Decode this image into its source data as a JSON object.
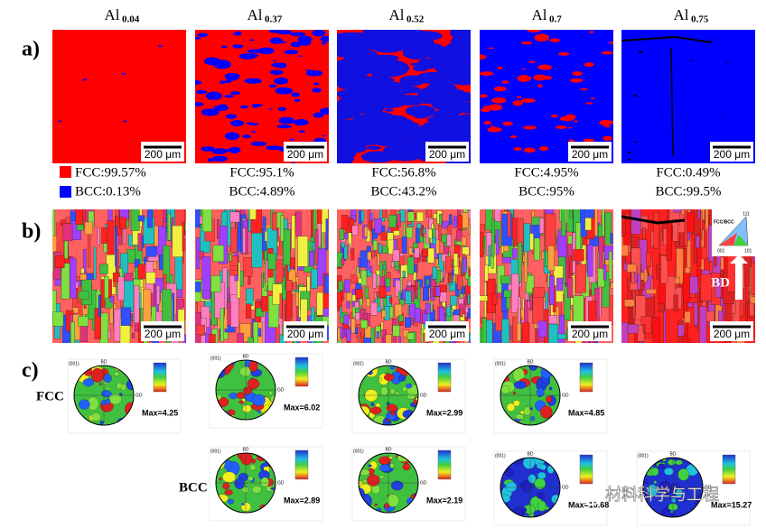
{
  "panels": [
    "a)",
    "b)",
    "c)"
  ],
  "scale_bar": "200 μm",
  "columns": [
    {
      "base": "Al",
      "sub": "0.04",
      "fcc": "FCC:99.57%",
      "bcc": "BCC:0.13%"
    },
    {
      "base": "Al",
      "sub": "0.37",
      "fcc": "FCC:95.1%",
      "bcc": "BCC:4.89%"
    },
    {
      "base": "Al",
      "sub": "0.52",
      "fcc": "FCC:56.8%",
      "bcc": "BCC:43.2%"
    },
    {
      "base": "Al",
      "sub": "0.7",
      "fcc": "FCC:4.95%",
      "bcc": "BCC:95%"
    },
    {
      "base": "Al",
      "sub": "0.75",
      "fcc": "FCC:0.49%",
      "bcc": "BCC:99.5%"
    }
  ],
  "ipf_key": {
    "title": "FCC/BCC",
    "top": "111",
    "left": "001",
    "right": "101",
    "arrow": "BD"
  },
  "pole_labels": {
    "bd": "BD",
    "gd": "GD",
    "plane": "(001)"
  },
  "pole_rows": {
    "fcc": "FCC",
    "bcc": "BCC"
  },
  "fcc_max": [
    "Max=4.25",
    "Max=6.02",
    "Max=2.99",
    "Max=4.85"
  ],
  "bcc_max": [
    "Max=2.89",
    "Max=2.19",
    "Max=10.68",
    "Max=15.27"
  ],
  "watermark": "材料科学与工程"
}
